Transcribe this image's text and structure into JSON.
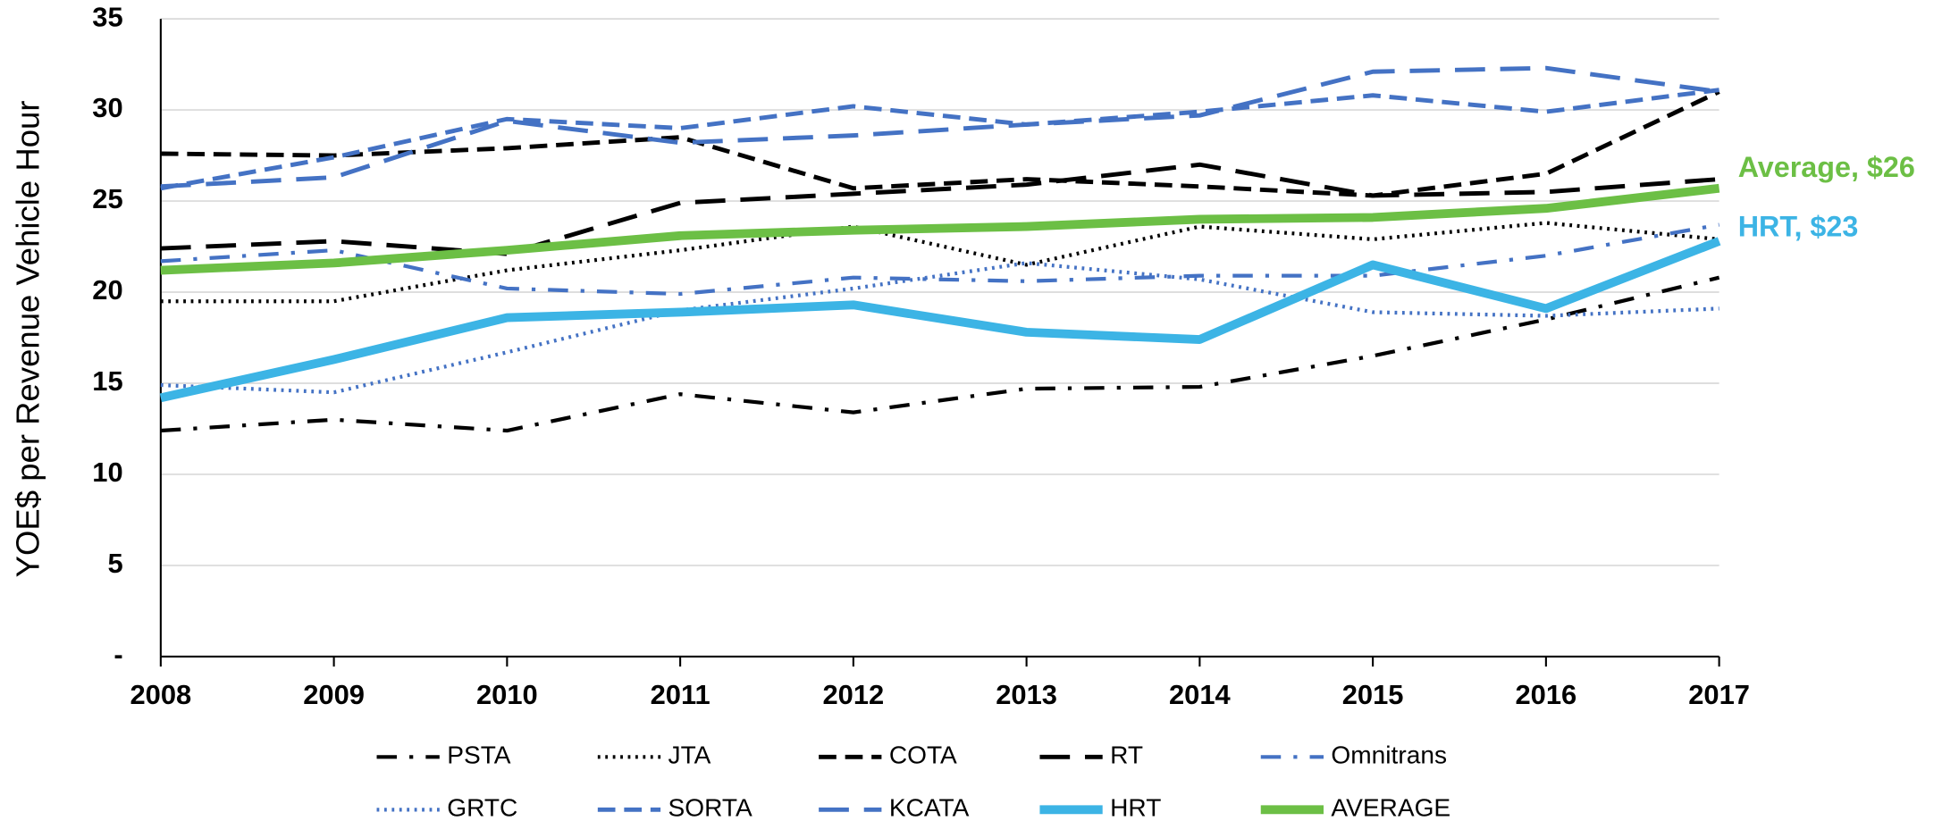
{
  "chart_data": {
    "type": "line",
    "y_label": "YOE$ per Revenue Vehicle Hour",
    "x": [
      2008,
      2009,
      2010,
      2011,
      2012,
      2013,
      2014,
      2015,
      2016,
      2017
    ],
    "xlim": [
      2008,
      2017
    ],
    "xticks": [
      2008,
      2009,
      2010,
      2011,
      2012,
      2013,
      2014,
      2015,
      2016,
      2017
    ],
    "ylim": [
      0,
      35
    ],
    "yticks": [
      {
        "value": 0,
        "label": "-"
      },
      5,
      10,
      15,
      20,
      25,
      30,
      35
    ],
    "grid": true,
    "legend": "bottom",
    "series": [
      {
        "name": "PSTA",
        "color": "#000000",
        "style": "dashdot",
        "values": [
          12.4,
          13.0,
          12.4,
          14.4,
          13.4,
          14.7,
          14.8,
          16.5,
          18.5,
          20.8
        ]
      },
      {
        "name": "JTA",
        "color": "#000000",
        "style": "dotted",
        "values": [
          19.5,
          19.5,
          21.2,
          22.3,
          23.6,
          21.5,
          23.6,
          22.9,
          23.8,
          22.9
        ]
      },
      {
        "name": "COTA",
        "color": "#000000",
        "style": "dashed",
        "values": [
          27.6,
          27.5,
          27.9,
          28.5,
          25.7,
          26.2,
          25.8,
          25.3,
          26.5,
          31.0
        ]
      },
      {
        "name": "RT",
        "color": "#000000",
        "style": "longdash",
        "values": [
          22.4,
          22.8,
          22.1,
          24.9,
          25.4,
          25.9,
          27.0,
          25.3,
          25.5,
          26.2
        ]
      },
      {
        "name": "Omnitrans",
        "color": "#4472c4",
        "style": "dashdot",
        "values": [
          21.7,
          22.3,
          20.2,
          19.9,
          20.8,
          20.6,
          20.9,
          20.9,
          22.0,
          23.7
        ]
      },
      {
        "name": "GRTC",
        "color": "#4472c4",
        "style": "dotted",
        "values": [
          14.9,
          14.5,
          16.7,
          19.0,
          20.2,
          21.6,
          20.7,
          18.9,
          18.7,
          19.1
        ]
      },
      {
        "name": "SORTA",
        "color": "#4472c4",
        "style": "dashed",
        "values": [
          25.7,
          27.4,
          29.5,
          29.0,
          30.2,
          29.2,
          29.9,
          30.8,
          29.9,
          31.1
        ]
      },
      {
        "name": "KCATA",
        "color": "#4472c4",
        "style": "longdash",
        "values": [
          25.8,
          26.3,
          29.4,
          28.2,
          28.6,
          29.2,
          29.7,
          32.1,
          32.3,
          31.0
        ]
      },
      {
        "name": "HRT",
        "color": "#3cb4e5",
        "style": "thick",
        "values": [
          14.2,
          16.3,
          18.6,
          18.9,
          19.3,
          17.8,
          17.4,
          21.5,
          19.1,
          22.8
        ]
      },
      {
        "name": "AVERAGE",
        "color": "#6cbf45",
        "style": "thick",
        "values": [
          21.2,
          21.6,
          22.3,
          23.1,
          23.4,
          23.6,
          24.0,
          24.1,
          24.6,
          25.7
        ]
      }
    ],
    "annotations": [
      {
        "text": "Average, $26",
        "color": "#6cbf45"
      },
      {
        "text": "HRT, $23",
        "color": "#3cb4e5"
      }
    ]
  }
}
